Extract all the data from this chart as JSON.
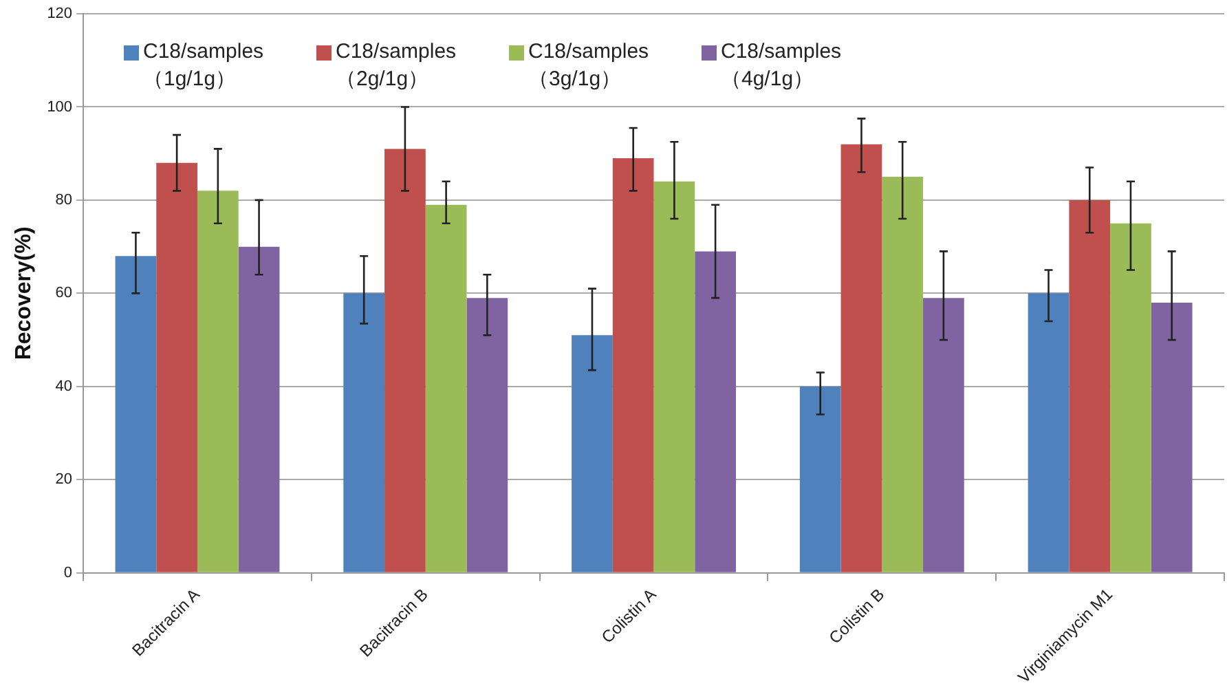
{
  "chart_data": {
    "type": "bar",
    "ylabel": "Recovery(%)",
    "categories": [
      "Bacitracin A",
      "Bacitracin B",
      "Colistin A",
      "Colistin B",
      "Virginiamycin M1"
    ],
    "series": [
      {
        "name": "C18/samples（1g/1g）",
        "color": "#4f81bd",
        "values": [
          68,
          60,
          51,
          40,
          60
        ],
        "errors": [
          [
            60,
            73
          ],
          [
            53.5,
            68
          ],
          [
            43.5,
            61
          ],
          [
            34,
            43
          ],
          [
            54,
            65
          ]
        ]
      },
      {
        "name": "C18/samples（2g/1g）",
        "color": "#c0504d",
        "values": [
          88,
          91,
          89,
          92,
          80
        ],
        "errors": [
          [
            82,
            94
          ],
          [
            82,
            100
          ],
          [
            82,
            95.5
          ],
          [
            86,
            97.5
          ],
          [
            73,
            87
          ]
        ]
      },
      {
        "name": "C18/samples（3g/1g）",
        "color": "#9bbb59",
        "values": [
          82,
          79,
          84,
          85,
          75
        ],
        "errors": [
          [
            75,
            91
          ],
          [
            75,
            84
          ],
          [
            76,
            92.5
          ],
          [
            76,
            92.5
          ],
          [
            65,
            84
          ]
        ]
      },
      {
        "name": "C18/samples（4g/1g）",
        "color": "#8064a2",
        "values": [
          70,
          59,
          69,
          59,
          58
        ],
        "errors": [
          [
            64,
            80
          ],
          [
            51,
            64
          ],
          [
            59,
            79
          ],
          [
            50,
            69
          ],
          [
            50,
            69
          ]
        ]
      }
    ],
    "ylim": [
      0,
      120
    ],
    "yticks": [
      0,
      20,
      40,
      60,
      80,
      100,
      120
    ],
    "grid": "y",
    "legend": "top"
  }
}
